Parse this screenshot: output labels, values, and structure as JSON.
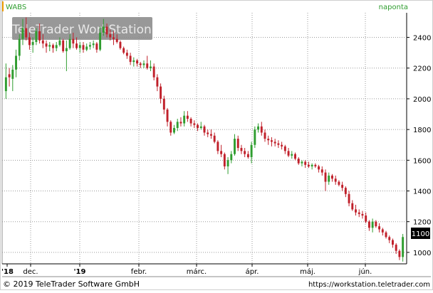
{
  "chart_data": {
    "type": "candlestick",
    "symbol": "WABS",
    "interval": "naponta",
    "watermark": "TeleTrader WorkStation",
    "copyright": "© 2019 TeleTrader Software GmbH",
    "url": "https://workstation.teletrader.com",
    "last_price_label": "1100",
    "y_ticks": [
      1000,
      1200,
      1400,
      1600,
      1800,
      2000,
      2200,
      2400
    ],
    "ylim": [
      930,
      2560
    ],
    "x_labels": [
      "'18",
      "dec.",
      "'19",
      "febr.",
      "márc.",
      "ápr.",
      "máj.",
      "jún."
    ],
    "grid": true,
    "colors": {
      "up": "#2f9d2f",
      "down": "#c0202a",
      "accent": "#f0a000",
      "grid": "#9a9a9a"
    },
    "candles": [
      [
        2050,
        2230,
        2000,
        2140
      ],
      [
        2160,
        2200,
        2080,
        2140
      ],
      [
        2130,
        2220,
        2050,
        2190
      ],
      [
        2190,
        2320,
        2140,
        2280
      ],
      [
        2280,
        2420,
        2250,
        2390
      ],
      [
        2390,
        2520,
        2350,
        2460
      ],
      [
        2460,
        2530,
        2380,
        2400
      ],
      [
        2400,
        2430,
        2320,
        2350
      ],
      [
        2350,
        2400,
        2300,
        2370
      ],
      [
        2370,
        2460,
        2350,
        2440
      ],
      [
        2440,
        2490,
        2360,
        2380
      ],
      [
        2380,
        2420,
        2330,
        2360
      ],
      [
        2360,
        2380,
        2300,
        2340
      ],
      [
        2340,
        2370,
        2310,
        2350
      ],
      [
        2350,
        2360,
        2300,
        2330
      ],
      [
        2330,
        2370,
        2310,
        2350
      ],
      [
        2350,
        2400,
        2340,
        2380
      ],
      [
        2380,
        2390,
        2300,
        2310
      ],
      [
        2310,
        2380,
        2180,
        2330
      ],
      [
        2330,
        2420,
        2320,
        2390
      ],
      [
        2390,
        2430,
        2330,
        2360
      ],
      [
        2360,
        2400,
        2320,
        2330
      ],
      [
        2330,
        2370,
        2300,
        2350
      ],
      [
        2350,
        2370,
        2300,
        2320
      ],
      [
        2320,
        2360,
        2310,
        2340
      ],
      [
        2340,
        2370,
        2320,
        2350
      ],
      [
        2350,
        2380,
        2330,
        2360
      ],
      [
        2360,
        2370,
        2300,
        2320
      ],
      [
        2320,
        2470,
        2310,
        2430
      ],
      [
        2430,
        2520,
        2410,
        2470
      ],
      [
        2470,
        2490,
        2400,
        2420
      ],
      [
        2420,
        2450,
        2380,
        2400
      ],
      [
        2400,
        2440,
        2350,
        2390
      ],
      [
        2390,
        2420,
        2360,
        2370
      ],
      [
        2370,
        2380,
        2320,
        2330
      ],
      [
        2330,
        2340,
        2290,
        2300
      ],
      [
        2300,
        2320,
        2260,
        2280
      ],
      [
        2280,
        2300,
        2220,
        2240
      ],
      [
        2240,
        2270,
        2210,
        2250
      ],
      [
        2250,
        2260,
        2210,
        2230
      ],
      [
        2230,
        2240,
        2200,
        2220
      ],
      [
        2220,
        2250,
        2200,
        2230
      ],
      [
        2230,
        2280,
        2190,
        2200
      ],
      [
        2200,
        2250,
        2180,
        2210
      ],
      [
        2210,
        2230,
        2120,
        2140
      ],
      [
        2140,
        2160,
        2050,
        2080
      ],
      [
        2080,
        2100,
        1970,
        2000
      ],
      [
        2000,
        2020,
        1900,
        1930
      ],
      [
        1930,
        1940,
        1820,
        1850
      ],
      [
        1850,
        1860,
        1760,
        1780
      ],
      [
        1780,
        1830,
        1770,
        1810
      ],
      [
        1810,
        1870,
        1790,
        1850
      ],
      [
        1850,
        1880,
        1820,
        1840
      ],
      [
        1840,
        1920,
        1820,
        1890
      ],
      [
        1890,
        1920,
        1850,
        1870
      ],
      [
        1870,
        1880,
        1820,
        1840
      ],
      [
        1840,
        1860,
        1810,
        1830
      ],
      [
        1830,
        1840,
        1790,
        1810
      ],
      [
        1810,
        1850,
        1800,
        1820
      ],
      [
        1820,
        1830,
        1760,
        1780
      ],
      [
        1780,
        1800,
        1750,
        1770
      ],
      [
        1770,
        1800,
        1740,
        1760
      ],
      [
        1760,
        1780,
        1710,
        1720
      ],
      [
        1720,
        1730,
        1640,
        1660
      ],
      [
        1660,
        1700,
        1620,
        1640
      ],
      [
        1640,
        1650,
        1540,
        1560
      ],
      [
        1560,
        1620,
        1510,
        1600
      ],
      [
        1600,
        1660,
        1580,
        1640
      ],
      [
        1640,
        1770,
        1630,
        1740
      ],
      [
        1740,
        1760,
        1660,
        1680
      ],
      [
        1680,
        1700,
        1640,
        1660
      ],
      [
        1660,
        1680,
        1620,
        1640
      ],
      [
        1640,
        1660,
        1610,
        1620
      ],
      [
        1620,
        1720,
        1580,
        1700
      ],
      [
        1700,
        1820,
        1680,
        1800
      ],
      [
        1800,
        1840,
        1780,
        1820
      ],
      [
        1820,
        1850,
        1760,
        1780
      ],
      [
        1780,
        1800,
        1720,
        1740
      ],
      [
        1740,
        1760,
        1700,
        1730
      ],
      [
        1730,
        1750,
        1690,
        1720
      ],
      [
        1720,
        1740,
        1690,
        1710
      ],
      [
        1710,
        1730,
        1680,
        1700
      ],
      [
        1700,
        1720,
        1670,
        1690
      ],
      [
        1690,
        1700,
        1640,
        1660
      ],
      [
        1660,
        1680,
        1620,
        1630
      ],
      [
        1630,
        1660,
        1610,
        1640
      ],
      [
        1640,
        1650,
        1600,
        1610
      ],
      [
        1610,
        1620,
        1570,
        1580
      ],
      [
        1580,
        1600,
        1560,
        1590
      ],
      [
        1590,
        1600,
        1550,
        1570
      ],
      [
        1570,
        1590,
        1550,
        1560
      ],
      [
        1560,
        1580,
        1540,
        1570
      ],
      [
        1570,
        1580,
        1550,
        1560
      ],
      [
        1560,
        1570,
        1520,
        1540
      ],
      [
        1540,
        1560,
        1500,
        1520
      ],
      [
        1520,
        1540,
        1400,
        1460
      ],
      [
        1460,
        1520,
        1440,
        1500
      ],
      [
        1500,
        1510,
        1460,
        1480
      ],
      [
        1480,
        1500,
        1440,
        1460
      ],
      [
        1460,
        1470,
        1430,
        1440
      ],
      [
        1440,
        1460,
        1400,
        1420
      ],
      [
        1420,
        1430,
        1360,
        1380
      ],
      [
        1380,
        1400,
        1300,
        1320
      ],
      [
        1320,
        1340,
        1270,
        1280
      ],
      [
        1280,
        1310,
        1240,
        1260
      ],
      [
        1260,
        1280,
        1230,
        1250
      ],
      [
        1250,
        1270,
        1220,
        1240
      ],
      [
        1240,
        1260,
        1190,
        1200
      ],
      [
        1200,
        1210,
        1140,
        1160
      ],
      [
        1160,
        1220,
        1130,
        1200
      ],
      [
        1200,
        1210,
        1160,
        1170
      ],
      [
        1170,
        1190,
        1130,
        1150
      ],
      [
        1150,
        1160,
        1110,
        1130
      ],
      [
        1130,
        1140,
        1090,
        1100
      ],
      [
        1100,
        1110,
        1060,
        1080
      ],
      [
        1080,
        1090,
        1030,
        1050
      ],
      [
        1050,
        1060,
        990,
        1010
      ],
      [
        1010,
        1020,
        950,
        970
      ],
      [
        970,
        1120,
        940,
        1100
      ]
    ]
  }
}
